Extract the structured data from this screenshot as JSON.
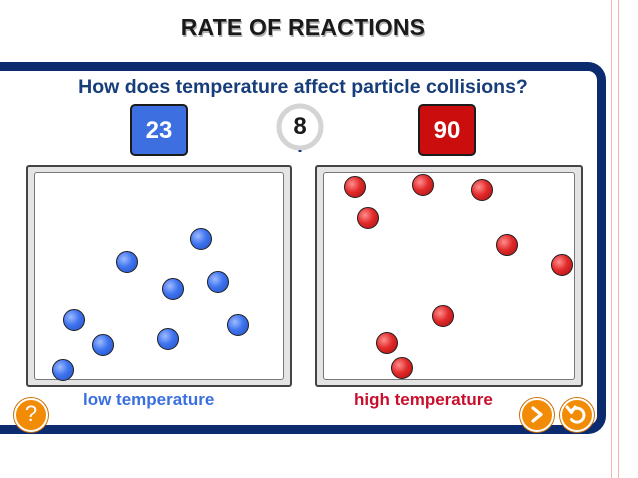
{
  "title": "RATE OF REACTIONS",
  "question": "How does temperature affect particle collisions?",
  "counters": {
    "low": "23",
    "high": "90"
  },
  "timer": {
    "value": "8"
  },
  "labels": {
    "low": "low temperature",
    "high": "high temperature"
  },
  "buttons": {
    "help": "?",
    "play": "play-icon",
    "reset": "reset-icon"
  },
  "colors": {
    "frame": "#0c2a6e",
    "question": "#173d7a",
    "blue": "#3d6fe0",
    "red": "#cc0d0d",
    "button": "#f28c06",
    "edge": "#f3b9a6"
  },
  "particles": {
    "low_count": 10,
    "high_count": 10
  }
}
